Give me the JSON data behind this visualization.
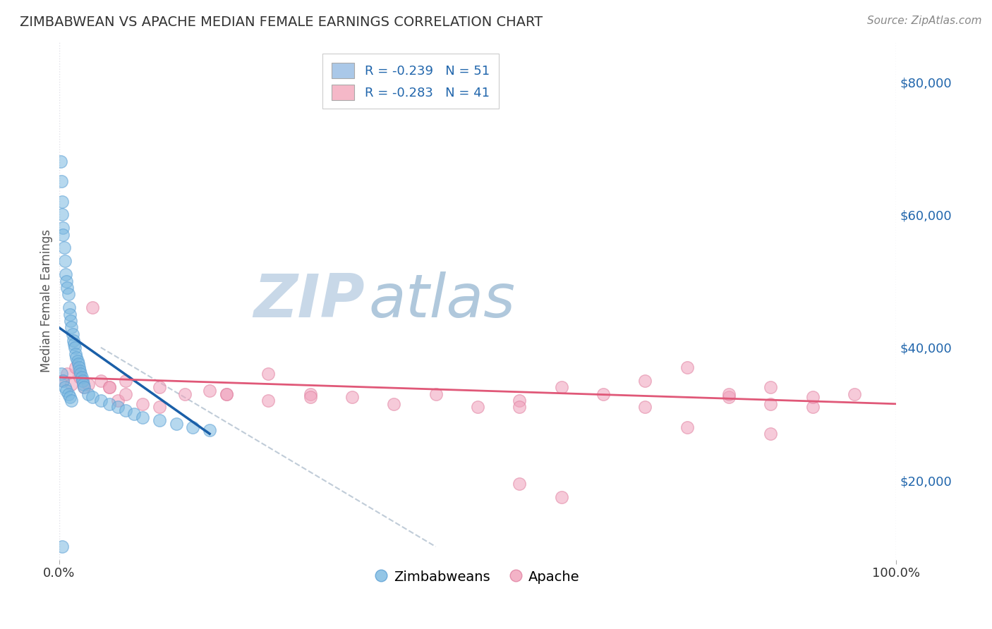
{
  "title": "ZIMBABWEAN VS APACHE MEDIAN FEMALE EARNINGS CORRELATION CHART",
  "source": "Source: ZipAtlas.com",
  "ylabel": "Median Female Earnings",
  "ylabel_right_labels": [
    "$20,000",
    "$40,000",
    "$60,000",
    "$80,000"
  ],
  "ylabel_right_values": [
    20000,
    40000,
    60000,
    80000
  ],
  "ylim": [
    8000,
    86000
  ],
  "xlim": [
    0.0,
    100.0
  ],
  "legend_entries": [
    {
      "label": "R = -0.239   N = 51",
      "color": "#aac8e8"
    },
    {
      "label": "R = -0.283   N = 41",
      "color": "#f5b8c8"
    }
  ],
  "legend_bottom": [
    "Zimbabweans",
    "Apache"
  ],
  "blue_scatter_x": [
    0.2,
    0.3,
    0.4,
    0.4,
    0.5,
    0.5,
    0.6,
    0.7,
    0.8,
    0.9,
    1.0,
    1.1,
    1.2,
    1.3,
    1.4,
    1.5,
    1.6,
    1.7,
    1.8,
    1.9,
    2.0,
    2.1,
    2.2,
    2.3,
    2.4,
    2.5,
    2.6,
    2.7,
    2.8,
    2.9,
    3.0,
    3.5,
    4.0,
    5.0,
    6.0,
    7.0,
    8.0,
    9.0,
    10.0,
    12.0,
    14.0,
    16.0,
    18.0,
    0.3,
    0.5,
    0.7,
    0.9,
    1.1,
    1.3,
    1.5,
    0.4
  ],
  "blue_scatter_y": [
    68000,
    65000,
    62000,
    60000,
    58000,
    57000,
    55000,
    53000,
    51000,
    50000,
    49000,
    48000,
    46000,
    45000,
    44000,
    43000,
    42000,
    41000,
    40500,
    40000,
    39000,
    38500,
    38000,
    37500,
    37000,
    36500,
    36000,
    35500,
    35000,
    34500,
    34000,
    33000,
    32500,
    32000,
    31500,
    31000,
    30500,
    30000,
    29500,
    29000,
    28500,
    28000,
    27500,
    36000,
    35000,
    34000,
    33500,
    33000,
    32500,
    32000,
    10000
  ],
  "pink_scatter_x": [
    0.5,
    1.0,
    1.5,
    2.0,
    2.5,
    3.0,
    4.0,
    5.0,
    6.0,
    7.0,
    8.0,
    10.0,
    12.0,
    15.0,
    18.0,
    20.0,
    25.0,
    30.0,
    35.0,
    40.0,
    45.0,
    50.0,
    55.0,
    60.0,
    65.0,
    70.0,
    75.0,
    80.0,
    85.0,
    90.0,
    95.0,
    3.5,
    6.0,
    8.0,
    12.0,
    20.0,
    25.0,
    30.0,
    55.0,
    85.0,
    90.0
  ],
  "pink_scatter_y": [
    35000,
    36000,
    34500,
    37000,
    35500,
    34000,
    46000,
    35000,
    34000,
    32000,
    33000,
    31500,
    31000,
    33000,
    33500,
    33000,
    36000,
    33000,
    32500,
    31500,
    33000,
    31000,
    32000,
    34000,
    33000,
    31000,
    37000,
    32500,
    34000,
    31000,
    33000,
    34500,
    34000,
    35000,
    34000,
    33000,
    32000,
    32500,
    31000,
    31500,
    32500
  ],
  "pink_extra_x": [
    70.0,
    80.0,
    55.0,
    60.0,
    75.0,
    85.0
  ],
  "pink_extra_y": [
    35000,
    33000,
    19500,
    17500,
    28000,
    27000
  ],
  "blue_line_x": [
    0.0,
    18.0
  ],
  "blue_line_y": [
    43000,
    27000
  ],
  "pink_line_x": [
    0.0,
    100.0
  ],
  "pink_line_y": [
    35500,
    31500
  ],
  "dashed_line_x": [
    5.0,
    45.0
  ],
  "dashed_line_y": [
    40000,
    10000
  ],
  "blue_color": "#7ab8e0",
  "blue_edge_color": "#5a9fd4",
  "pink_color": "#f0a0ba",
  "pink_edge_color": "#e080a0",
  "blue_line_color": "#1a5fa8",
  "pink_line_color": "#e05878",
  "dashed_line_color": "#c0ccd8",
  "background_color": "#ffffff",
  "grid_color": "#e0e0e8",
  "watermark_zip_color": "#c8d8e8",
  "watermark_atlas_color": "#b0c8dc",
  "title_fontsize": 14,
  "source_fontsize": 11
}
